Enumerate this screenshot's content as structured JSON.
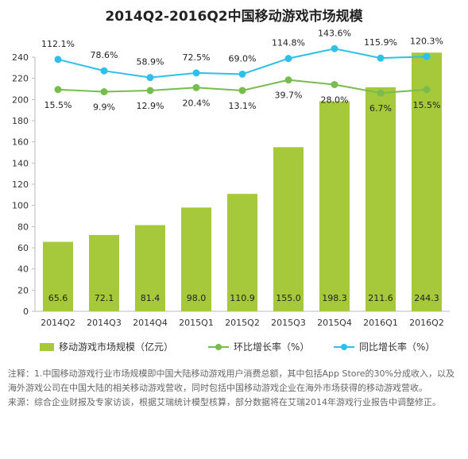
{
  "title": "2014Q2-2016Q2中国移动游戏市场规模",
  "colors": {
    "bar": "#a5c93b",
    "mom": "#78bc4e",
    "yoy": "#2fc0ea",
    "axis": "#bbbbbb"
  },
  "legend": {
    "bar": "移动游戏市场规模（亿元）",
    "mom": "环比增长率（%）",
    "yoy": "同比增长率（%）"
  },
  "chart_data": {
    "type": "bar",
    "title": "2014Q2-2016Q2中国移动游戏市场规模",
    "categories": [
      "2014Q2",
      "2014Q3",
      "2014Q4",
      "2015Q1",
      "2015Q2",
      "2015Q3",
      "2015Q4",
      "2016Q1",
      "2016Q2"
    ],
    "ylim": [
      0,
      240
    ],
    "yticks": [
      0,
      20,
      40,
      60,
      80,
      100,
      120,
      140,
      160,
      180,
      200,
      220,
      240
    ],
    "grid": false,
    "legend_position": "bottom",
    "series": [
      {
        "name": "移动游戏市场规模（亿元）",
        "type": "bar",
        "values": [
          65.6,
          72.1,
          81.4,
          98.0,
          110.9,
          155.0,
          198.3,
          211.6,
          244.3
        ],
        "labels": [
          "65.6",
          "72.1",
          "81.4",
          "98.0",
          "110.9",
          "155.0",
          "198.3",
          "211.6",
          "244.3"
        ]
      },
      {
        "name": "环比增长率（%）",
        "type": "line",
        "values": [
          15.5,
          9.9,
          12.9,
          20.4,
          13.1,
          39.7,
          28.0,
          6.7,
          15.5
        ],
        "labels": [
          "15.5%",
          "9.9%",
          "12.9%",
          "20.4%",
          "13.1%",
          "39.7%",
          "28.0%",
          "6.7%",
          "15.5%"
        ]
      },
      {
        "name": "同比增长率（%）",
        "type": "line",
        "values": [
          112.1,
          78.6,
          58.9,
          72.5,
          69.0,
          114.8,
          143.6,
          115.9,
          120.3
        ],
        "labels": [
          "112.1%",
          "78.6%",
          "58.9%",
          "72.5%",
          "69.0%",
          "114.8%",
          "143.6%",
          "115.9%",
          "120.3%"
        ]
      }
    ]
  },
  "notes": [
    "注释：1.中国移动游戏行业市场规模即中国大陆移动游戏用户消费总额，其中包括App Store的30%分成收入，以及海外游戏公司在中国大陆的相关移动游戏营收，同时包括中国移动游戏企业在海外市场获得的移动游戏营收。",
    "来源：综合企业财报及专家访谈，根据艾瑞统计模型核算，部分数据将在艾瑞2014年游戏行业报告中调整修正。"
  ]
}
